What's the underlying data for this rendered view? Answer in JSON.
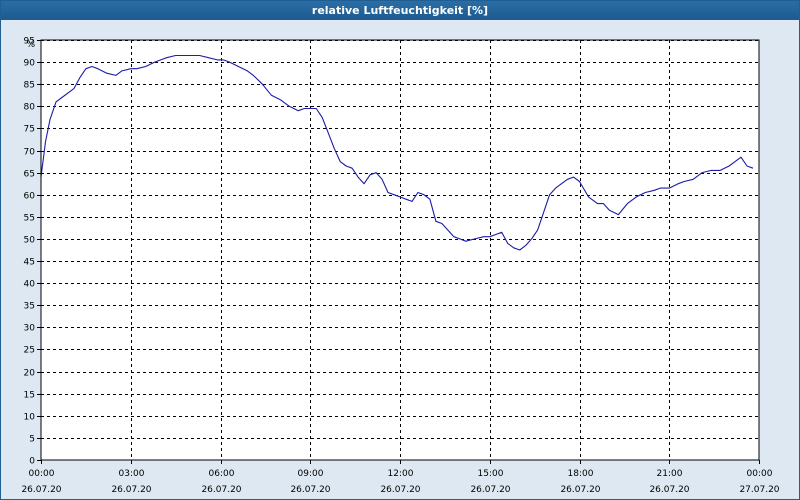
{
  "window": {
    "title": "relative Luftfeuchtigkeit [%]"
  },
  "colors": {
    "line": "#1c1ca8",
    "grid": "#000000",
    "plot_bg": "#ffffff",
    "title_bg": "#1d5b8f"
  },
  "chart_data": {
    "type": "line",
    "title": "relative Luftfeuchtigkeit [%]",
    "ylabel": "%",
    "xlabel": "",
    "ylim": [
      0,
      95
    ],
    "xlim": [
      0,
      24
    ],
    "grid": true,
    "y_ticks": [
      0,
      5,
      10,
      15,
      20,
      25,
      30,
      35,
      40,
      45,
      50,
      55,
      60,
      65,
      70,
      75,
      80,
      85,
      90,
      95
    ],
    "x_ticks": [
      {
        "t": 0,
        "time": "00:00",
        "date": "26.07.20"
      },
      {
        "t": 3,
        "time": "03:00",
        "date": "26.07.20"
      },
      {
        "t": 6,
        "time": "06:00",
        "date": "26.07.20"
      },
      {
        "t": 9,
        "time": "09:00",
        "date": "26.07.20"
      },
      {
        "t": 12,
        "time": "12:00",
        "date": "26.07.20"
      },
      {
        "t": 15,
        "time": "15:00",
        "date": "26.07.20"
      },
      {
        "t": 18,
        "time": "18:00",
        "date": "26.07.20"
      },
      {
        "t": 21,
        "time": "21:00",
        "date": "26.07.20"
      },
      {
        "t": 24,
        "time": "00:00",
        "date": "27.07.20"
      }
    ],
    "series": [
      {
        "x": [
          0,
          0.15,
          0.3,
          0.5,
          0.7,
          0.9,
          1.1,
          1.3,
          1.5,
          1.7,
          1.9,
          2.2,
          2.5,
          2.7,
          3.0,
          3.2,
          3.5,
          3.8,
          4.0,
          4.2,
          4.5,
          4.8,
          5.0,
          5.3,
          5.6,
          5.9,
          6.1,
          6.3,
          6.6,
          6.9,
          7.1,
          7.4,
          7.7,
          8.0,
          8.3,
          8.6,
          8.8,
          9.0,
          9.2,
          9.4,
          9.6,
          9.8,
          10.0,
          10.2,
          10.4,
          10.6,
          10.8,
          11.0,
          11.2,
          11.4,
          11.6,
          11.8,
          12.0,
          12.2,
          12.4,
          12.6,
          12.8,
          13.0,
          13.2,
          13.4,
          13.6,
          13.8,
          14.0,
          14.2,
          14.5,
          14.8,
          15.0,
          15.2,
          15.4,
          15.6,
          15.8,
          16.0,
          16.2,
          16.4,
          16.6,
          16.8,
          17.0,
          17.2,
          17.4,
          17.6,
          17.8,
          18.0,
          18.3,
          18.6,
          18.8,
          19.0,
          19.3,
          19.6,
          19.9,
          20.2,
          20.5,
          20.7,
          21.0,
          21.3,
          21.5,
          21.8,
          22.1,
          22.4,
          22.7,
          23.0,
          23.2,
          23.4,
          23.6,
          23.8
        ],
        "y": [
          64,
          72,
          77,
          81,
          82,
          83,
          84,
          86.5,
          88.5,
          89,
          88.5,
          87.5,
          87,
          88,
          88.5,
          88.5,
          89,
          90,
          90.5,
          91,
          91.5,
          91.5,
          91.5,
          91.5,
          91,
          90.5,
          90.5,
          90,
          89,
          88,
          87,
          85,
          82.5,
          81.5,
          80,
          79,
          79.5,
          79.5,
          79.5,
          77.5,
          74,
          70.5,
          67.5,
          66.5,
          66,
          64,
          62.5,
          64.5,
          65,
          63.5,
          60.5,
          60,
          59.5,
          59,
          58.5,
          60.5,
          60,
          59,
          54,
          53.5,
          52,
          50.5,
          50,
          49.5,
          50,
          50.5,
          50.5,
          51,
          51.5,
          49,
          48,
          47.5,
          48.5,
          50,
          52,
          56,
          60,
          61.5,
          62.5,
          63.5,
          64,
          63,
          59.5,
          58,
          58,
          56.5,
          55.5,
          58,
          59.5,
          60.5,
          61,
          61.5,
          61.5,
          62.5,
          63,
          63.5,
          65,
          65.5,
          65.5,
          66.5,
          67.5,
          68.5,
          66.5,
          66
        ]
      }
    ]
  }
}
